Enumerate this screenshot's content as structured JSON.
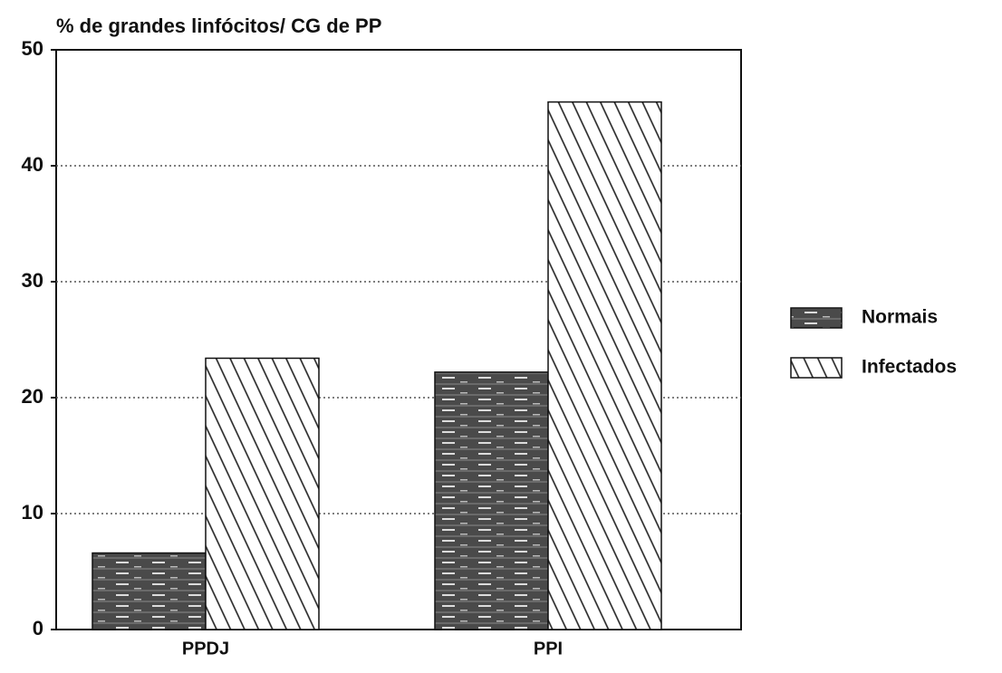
{
  "chart_data": {
    "type": "bar",
    "title": "% de grandes linfócitos/ CG de PP",
    "categories": [
      "PPDJ",
      "PPI"
    ],
    "series": [
      {
        "name": "Normais",
        "color": "#4a4a4a",
        "pattern": "solid",
        "values": [
          6.6,
          22.2
        ]
      },
      {
        "name": "Infectados",
        "color": "#ffffff",
        "pattern": "hatch",
        "values": [
          23.4,
          45.5
        ]
      }
    ],
    "ylim": [
      0,
      50
    ],
    "yticks": [
      0,
      10,
      20,
      30,
      40,
      50
    ],
    "grid": true,
    "legend": "right"
  }
}
